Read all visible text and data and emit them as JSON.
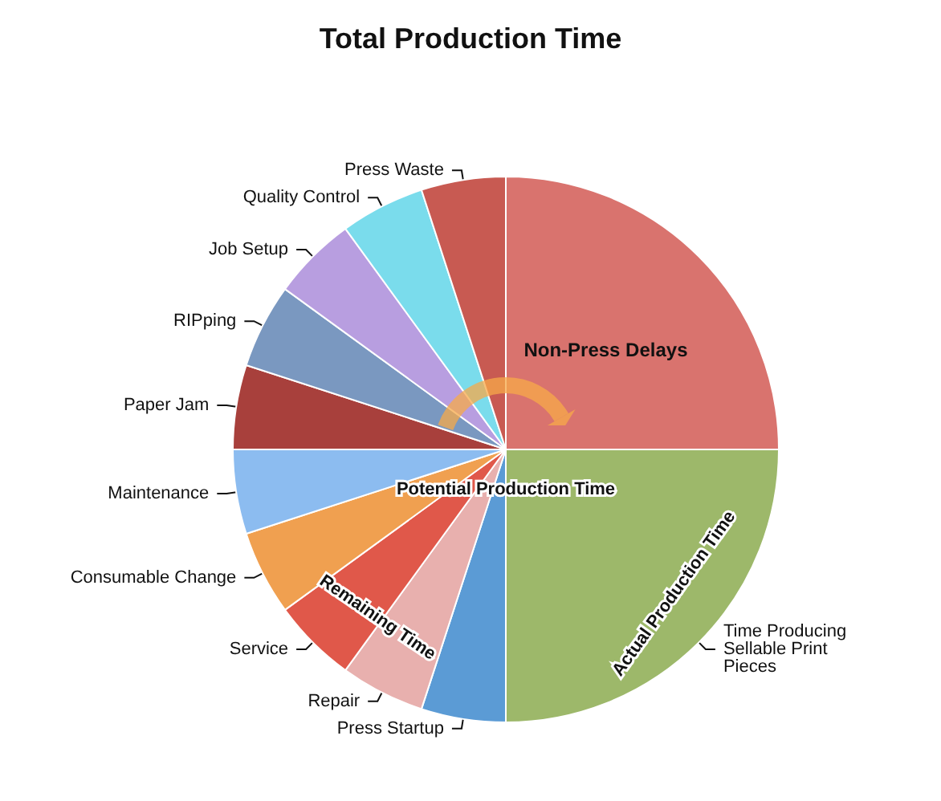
{
  "chart_data": {
    "type": "pie",
    "title": "Total Production Time",
    "categories": [
      "Non-Press Delays",
      "Time Producing Sellable Print Pieces",
      "Press Startup",
      "Repair",
      "Service",
      "Consumable Change",
      "Maintenance",
      "Paper Jam",
      "RIPping",
      "Job Setup",
      "Quality Control",
      "Press Waste"
    ],
    "values": [
      25,
      25,
      5,
      5,
      5,
      5,
      5,
      5,
      5,
      5,
      5,
      5
    ],
    "colors": [
      "#d9736e",
      "#9db86a",
      "#5b9bd5",
      "#e8b0ae",
      "#e0584a",
      "#f0a050",
      "#8cbcf0",
      "#a8403c",
      "#7a98c0",
      "#b89ee0",
      "#7adcec",
      "#c85a52"
    ],
    "annotations": [
      "Potential Production Time",
      "Remaining Time",
      "Actual Production Time"
    ],
    "legend": false
  }
}
